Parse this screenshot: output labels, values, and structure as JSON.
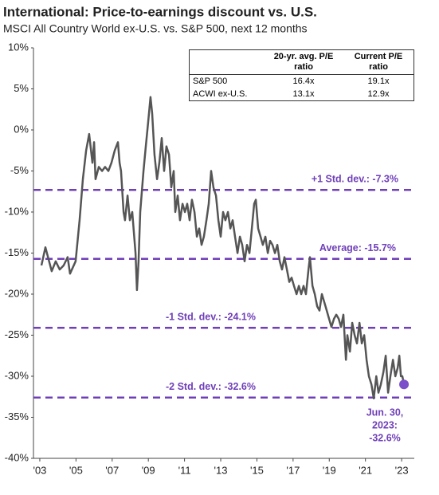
{
  "chart_data": {
    "type": "line",
    "title": "International: Price-to-earnings discount vs. U.S.",
    "subtitle": "MSCI All Country World ex-U.S. vs. S&P 500, next 12 months",
    "x": [
      2003.09,
      2003.31,
      2003.66,
      2003.88,
      2004.1,
      2004.32,
      2004.54,
      2004.67,
      2004.98,
      2005.2,
      2005.38,
      2005.56,
      2005.73,
      2005.91,
      2006.0,
      2006.08,
      2006.26,
      2006.44,
      2006.61,
      2006.79,
      2006.96,
      2007.14,
      2007.32,
      2007.41,
      2007.49,
      2007.63,
      2007.71,
      2007.85,
      2007.98,
      2008.11,
      2008.29,
      2008.37,
      2008.46,
      2008.55,
      2008.73,
      2008.86,
      2008.99,
      2009.12,
      2009.21,
      2009.34,
      2009.48,
      2009.61,
      2009.74,
      2009.87,
      2010.0,
      2010.14,
      2010.27,
      2010.4,
      2010.49,
      2010.62,
      2010.75,
      2010.89,
      2011.02,
      2011.15,
      2011.28,
      2011.41,
      2011.55,
      2011.68,
      2011.81,
      2011.94,
      2012.07,
      2012.21,
      2012.34,
      2012.47,
      2012.6,
      2012.74,
      2012.87,
      2013.0,
      2013.13,
      2013.26,
      2013.4,
      2013.53,
      2013.66,
      2013.79,
      2013.93,
      2014.06,
      2014.19,
      2014.32,
      2014.45,
      2014.59,
      2014.72,
      2014.85,
      2014.94,
      2015.07,
      2015.2,
      2015.33,
      2015.47,
      2015.6,
      2015.73,
      2015.86,
      2016.0,
      2016.13,
      2016.26,
      2016.39,
      2016.52,
      2016.66,
      2016.79,
      2016.92,
      2017.05,
      2017.19,
      2017.32,
      2017.45,
      2017.58,
      2017.71,
      2017.85,
      2017.93,
      2018.07,
      2018.2,
      2018.33,
      2018.46,
      2018.59,
      2018.73,
      2018.86,
      2018.99,
      2019.12,
      2019.26,
      2019.39,
      2019.52,
      2019.65,
      2019.78,
      2019.92,
      2020.0,
      2020.14,
      2020.27,
      2020.4,
      2020.53,
      2020.67,
      2020.8,
      2020.93,
      2021.06,
      2021.19,
      2021.33,
      2021.46,
      2021.6,
      2021.72,
      2021.85,
      2021.99,
      2022.12,
      2022.25,
      2022.38,
      2022.52,
      2022.65,
      2022.78,
      2022.87,
      2022.96,
      2023.04,
      2023.13
    ],
    "series": [
      {
        "name": "ACWI ex-U.S. vs. S&P 500",
        "color": "#555555",
        "values": [
          -16.5,
          -14.3,
          -17.2,
          -16,
          -17,
          -16.5,
          -15.5,
          -17.5,
          -16,
          -11,
          -6,
          -2.5,
          -0.5,
          -4,
          -1.5,
          -6,
          -4.5,
          -5,
          -4.5,
          -5,
          -4,
          -2.5,
          -1.5,
          -4,
          -5,
          -10,
          -11,
          -8,
          -11,
          -10,
          -15,
          -19.5,
          -16,
          -10,
          -5,
          -2,
          1,
          4,
          2,
          -3,
          -6,
          -4,
          -1,
          -5,
          -2,
          -3,
          -7,
          -5,
          -10,
          -8,
          -11,
          -9,
          -10,
          -9,
          -11,
          -8.5,
          -10,
          -13,
          -12,
          -14,
          -13,
          -11,
          -9,
          -5,
          -7,
          -8,
          -11,
          -13,
          -10,
          -11,
          -10,
          -12,
          -11,
          -13,
          -15,
          -13,
          -14,
          -16,
          -14,
          -15,
          -12,
          -9,
          -8.5,
          -12,
          -13,
          -14,
          -13,
          -15,
          -13.5,
          -14,
          -15,
          -14,
          -16,
          -17,
          -15.5,
          -17,
          -18.5,
          -18,
          -19,
          -20,
          -19,
          -20,
          -19,
          -20,
          -17,
          -15.5,
          -19,
          -20,
          -21.5,
          -22,
          -20,
          -21,
          -22,
          -23,
          -24,
          -23,
          -22.5,
          -23,
          -24,
          -22.5,
          -28,
          -25,
          -27,
          -23.5,
          -25,
          -26,
          -23.5,
          -26,
          -25,
          -28,
          -30,
          -31,
          -32.7,
          -30,
          -32,
          -31,
          -29.5,
          -27.5,
          -32,
          -30,
          -28,
          -30,
          -29,
          -27.5,
          -30,
          -30,
          -31
        ]
      }
    ],
    "marker_color": "#7b4fc9",
    "reference_color": "#6f3fb8",
    "reference_lines": [
      {
        "label": "+1 Std. dev.: -7.3%",
        "value": -7.3
      },
      {
        "label": "Average: -15.7%",
        "value": -15.7
      },
      {
        "label": "-1 Std. dev.: -24.1%",
        "value": -24.1
      },
      {
        "label": "-2 Std. dev.: -32.6%",
        "value": -32.6
      }
    ],
    "annotation": [
      "Jun. 30,",
      "2023:",
      "-32.6%"
    ],
    "xlim": [
      2002.65,
      2023.7
    ],
    "xticks": [
      {
        "value": 2003,
        "label": "'03"
      },
      {
        "value": 2005,
        "label": "'05"
      },
      {
        "value": 2007,
        "label": "'07"
      },
      {
        "value": 2009,
        "label": "'09"
      },
      {
        "value": 2011,
        "label": "'11"
      },
      {
        "value": 2013,
        "label": "'13"
      },
      {
        "value": 2015,
        "label": "'15"
      },
      {
        "value": 2017,
        "label": "'17"
      },
      {
        "value": 2019,
        "label": "'19"
      },
      {
        "value": 2021,
        "label": "'21"
      },
      {
        "value": 2023,
        "label": "'23"
      }
    ],
    "ylim": [
      -40,
      10
    ],
    "yticks": [
      {
        "value": 10,
        "label": "10%"
      },
      {
        "value": 5,
        "label": "5%"
      },
      {
        "value": 0,
        "label": "0%"
      },
      {
        "value": -5,
        "label": "-5%"
      },
      {
        "value": -10,
        "label": "-10%"
      },
      {
        "value": -15,
        "label": "-15%"
      },
      {
        "value": -20,
        "label": "-20%"
      },
      {
        "value": -25,
        "label": "-25%"
      },
      {
        "value": -30,
        "label": "-30%"
      },
      {
        "value": -35,
        "label": "-35%"
      },
      {
        "value": -40,
        "label": "-40%"
      }
    ],
    "table": {
      "columns": [
        "20-yr. avg. P/E ratio",
        "Current P/E ratio"
      ],
      "rows": [
        [
          "S&P 500",
          "16.4x",
          "19.1x"
        ],
        [
          "ACWI ex-U.S.",
          "13.1x",
          "12.9x"
        ]
      ]
    }
  }
}
